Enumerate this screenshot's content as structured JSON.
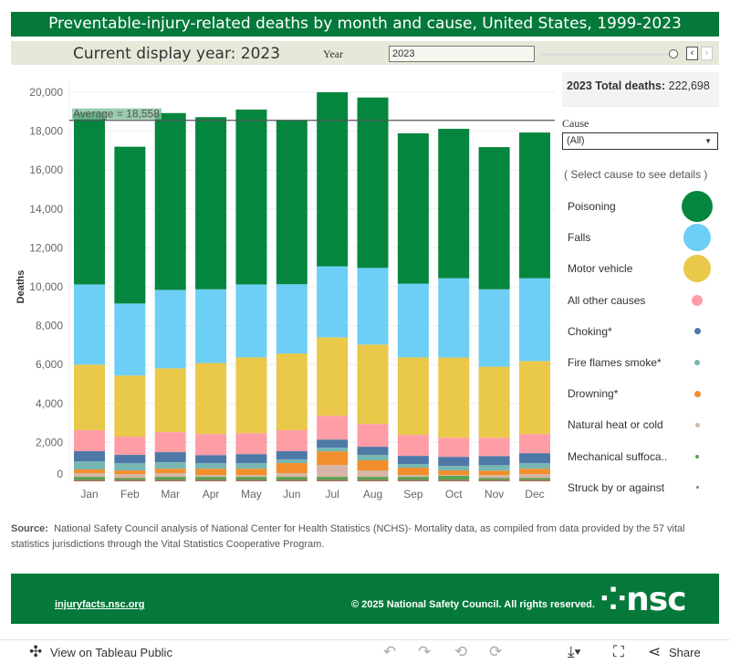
{
  "header": {
    "title": "Preventable-injury-related deaths by month and cause, United States, 1999-2023"
  },
  "controls": {
    "current_display": "Current display year:  2023",
    "year_label": "Year",
    "year_value": "2023",
    "prev": "‹",
    "next": "›"
  },
  "summary": {
    "total_label": "2023 Total deaths:",
    "total_value": "222,698"
  },
  "filter": {
    "cause_label": "Cause",
    "cause_value": "(All)",
    "hint": "( Select cause to see details )"
  },
  "colors": {
    "header_bg": "#05793a",
    "footer_bg": "#05793a"
  },
  "chart_data": {
    "type": "bar",
    "stacked": true,
    "ylabel": "Deaths",
    "xlabel": "",
    "ylim": [
      0,
      20000
    ],
    "yticks": [
      0,
      2000,
      4000,
      6000,
      8000,
      10000,
      12000,
      14000,
      16000,
      18000,
      20000
    ],
    "ytick_labels": [
      "0",
      "2,000",
      "4,000",
      "6,000",
      "8,000",
      "10,000",
      "12,000",
      "14,000",
      "16,000",
      "18,000",
      "20,000"
    ],
    "grid": true,
    "categories": [
      "Jan",
      "Feb",
      "Mar",
      "Apr",
      "May",
      "Jun",
      "Jul",
      "Aug",
      "Sep",
      "Oct",
      "Nov",
      "Dec"
    ],
    "reference_line": {
      "value": 18558,
      "label": "Average = 18,558"
    },
    "legend_position": "right",
    "series": [
      {
        "name": "Struck by or against",
        "color": "#9c755f",
        "values": [
          90,
          90,
          90,
          90,
          90,
          90,
          90,
          90,
          90,
          90,
          90,
          90
        ]
      },
      {
        "name": "Mechanical suffoca..",
        "color": "#59a14f",
        "values": [
          140,
          90,
          140,
          140,
          140,
          140,
          140,
          140,
          140,
          190,
          90,
          90
        ]
      },
      {
        "name": "Natural heat or cold",
        "color": "#d7b5a6",
        "values": [
          190,
          190,
          190,
          90,
          90,
          190,
          610,
          330,
          90,
          50,
          140,
          190
        ]
      },
      {
        "name": "Drowning*",
        "color": "#f28e2b",
        "values": [
          190,
          190,
          230,
          330,
          330,
          520,
          700,
          520,
          380,
          230,
          230,
          280
        ]
      },
      {
        "name": "Fire flames smoke*",
        "color": "#76b7b2",
        "values": [
          420,
          380,
          330,
          280,
          280,
          190,
          190,
          280,
          190,
          230,
          280,
          280
        ]
      },
      {
        "name": "Choking*",
        "color": "#4e79a7",
        "values": [
          520,
          420,
          520,
          420,
          470,
          420,
          420,
          420,
          420,
          470,
          470,
          520
        ]
      },
      {
        "name": "All other causes",
        "color": "#ff9da7",
        "values": [
          1080,
          940,
          1030,
          1080,
          1080,
          1080,
          1220,
          1170,
          1080,
          980,
          940,
          980
        ]
      },
      {
        "name": "Motor vehicle",
        "color": "#e9c84a",
        "values": [
          3370,
          3140,
          3280,
          3650,
          3890,
          3940,
          4030,
          4080,
          3980,
          4120,
          3650,
          3750
        ]
      },
      {
        "name": "Falls",
        "color": "#6dcff6",
        "values": [
          4120,
          3700,
          4030,
          3790,
          3750,
          3560,
          3650,
          3940,
          3790,
          4080,
          3980,
          4260
        ]
      },
      {
        "name": "Poisoning",
        "color": "#05863e",
        "values": [
          8850,
          8060,
          9090,
          8850,
          8990,
          8430,
          8950,
          8760,
          7730,
          7680,
          7310,
          7490
        ]
      }
    ]
  },
  "legend": [
    {
      "label": "Poisoning",
      "color": "#05863e",
      "size": 34
    },
    {
      "label": "Falls",
      "color": "#6dcff6",
      "size": 30
    },
    {
      "label": "Motor vehicle",
      "color": "#e9c84a",
      "size": 30
    },
    {
      "label": "All other causes",
      "color": "#ff9da7",
      "size": 12
    },
    {
      "label": "Choking*",
      "color": "#4e79a7",
      "size": 7
    },
    {
      "label": "Fire flames smoke*",
      "color": "#76b7b2",
      "size": 6
    },
    {
      "label": "Drowning*",
      "color": "#f28e2b",
      "size": 7
    },
    {
      "label": "Natural heat or cold",
      "color": "#d7b5a6",
      "size": 5
    },
    {
      "label": "Mechanical suffoca..",
      "color": "#59a14f",
      "size": 4
    },
    {
      "label": "Struck by or against",
      "color": "#9c755f",
      "size": 3
    }
  ],
  "source": {
    "prefix": "Source:",
    "text": "National Safety Council analysis of National Center for Health Statistics (NCHS)- Mortality data, as compiled from data provided by the 57 vital statistics jurisdictions through the Vital Statistics Cooperative Program."
  },
  "footer": {
    "link": "injuryfacts.nsc.org",
    "copyright": "© 2025 National Safety Council. All rights reserved.",
    "logo": "⁘nsc"
  },
  "toolbar": {
    "view_label": "View on Tableau Public",
    "share_label": "Share"
  }
}
